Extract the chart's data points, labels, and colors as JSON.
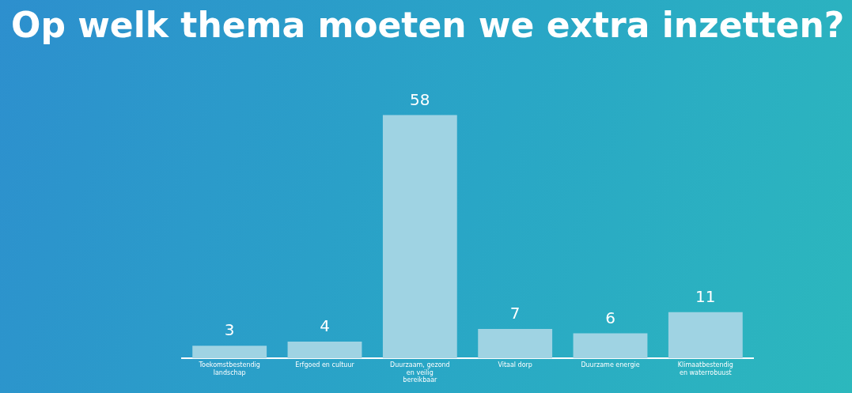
{
  "chart_data": {
    "type": "bar",
    "title": "Op welk thema moeten we extra inzetten?",
    "categories": [
      "Toekomstbestendig landschap",
      "Erfgoed en cultuur",
      "Duurzaam, gezond en veilig bereikbaar",
      "Vitaal dorp",
      "Duurzame energie",
      "Klimaatbestendig en waterrobuust"
    ],
    "values": [
      3,
      4,
      58,
      7,
      6,
      11
    ],
    "color": "#9fd3e3",
    "data_labels": true,
    "grid": false,
    "legend": false
  }
}
